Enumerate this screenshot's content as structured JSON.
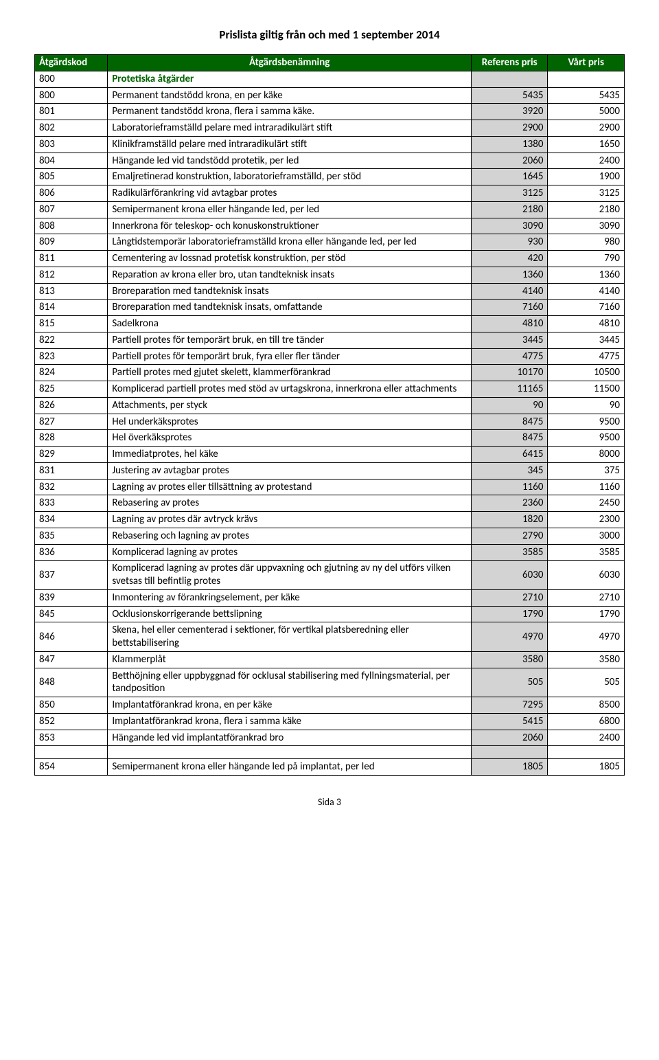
{
  "page": {
    "title": "Prislista giltig från och med 1 september 2014",
    "footer": "Sida 3"
  },
  "table": {
    "headers": {
      "code": "Åtgärdskod",
      "desc": "Åtgärdsbenämning",
      "ref": "Referens pris",
      "our": "Vårt pris"
    },
    "section": {
      "code": "800",
      "label": "Protetiska åtgärder"
    },
    "rows": [
      {
        "code": "800",
        "desc": "Permanent tandstödd krona, en per käke",
        "ref": "5435",
        "our": "5435"
      },
      {
        "code": "801",
        "desc": "Permanent tandstödd krona, flera i samma käke.",
        "ref": "3920",
        "our": "5000"
      },
      {
        "code": "802",
        "desc": "Laboratorieframställd pelare med intraradikulärt stift",
        "ref": "2900",
        "our": "2900"
      },
      {
        "code": "803",
        "desc": "Klinikframställd pelare med intraradikulärt stift",
        "ref": "1380",
        "our": "1650"
      },
      {
        "code": "804",
        "desc": "Hängande led vid tandstödd protetik, per led",
        "ref": "2060",
        "our": "2400"
      },
      {
        "code": "805",
        "desc": "Emaljretinerad konstruktion, laboratorieframställd, per stöd",
        "ref": "1645",
        "our": "1900"
      },
      {
        "code": "806",
        "desc": "Radikulärförankring vid avtagbar protes",
        "ref": "3125",
        "our": "3125"
      },
      {
        "code": "807",
        "desc": "Semipermanent krona eller hängande led, per led",
        "ref": "2180",
        "our": "2180"
      },
      {
        "code": "808",
        "desc": "Innerkrona för teleskop- och konuskonstruktioner",
        "ref": "3090",
        "our": "3090"
      },
      {
        "code": "809",
        "desc": "Långtidstemporär laboratorieframställd krona eller hängande led, per led",
        "ref": "930",
        "our": "980"
      },
      {
        "code": "811",
        "desc": "Cementering av lossnad protetisk konstruktion, per stöd",
        "ref": "420",
        "our": "790"
      },
      {
        "code": "812",
        "desc": "Reparation av krona eller bro, utan tandteknisk insats",
        "ref": "1360",
        "our": "1360"
      },
      {
        "code": "813",
        "desc": "Broreparation med tandteknisk insats",
        "ref": "4140",
        "our": "4140"
      },
      {
        "code": "814",
        "desc": "Broreparation med tandteknisk insats, omfattande",
        "ref": "7160",
        "our": "7160"
      },
      {
        "code": "815",
        "desc": "Sadelkrona",
        "ref": "4810",
        "our": "4810"
      },
      {
        "code": "822",
        "desc": "Partiell protes för temporärt bruk, en till tre tänder",
        "ref": "3445",
        "our": "3445"
      },
      {
        "code": "823",
        "desc": "Partiell protes för temporärt bruk, fyra eller fler tänder",
        "ref": "4775",
        "our": "4775"
      },
      {
        "code": "824",
        "desc": "Partiell protes med gjutet skelett, klammerförankrad",
        "ref": "10170",
        "our": "10500"
      },
      {
        "code": "825",
        "desc": "Komplicerad partiell protes med stöd av urtagskrona, innerkrona eller attachments",
        "ref": "11165",
        "our": "11500"
      },
      {
        "code": "826",
        "desc": "Attachments, per styck",
        "ref": "90",
        "our": "90"
      },
      {
        "code": "827",
        "desc": "Hel underkäksprotes",
        "ref": "8475",
        "our": "9500"
      },
      {
        "code": "828",
        "desc": "Hel överkäksprotes",
        "ref": "8475",
        "our": "9500"
      },
      {
        "code": "829",
        "desc": "Immediatprotes, hel käke",
        "ref": "6415",
        "our": "8000"
      },
      {
        "code": "831",
        "desc": "Justering av avtagbar protes",
        "ref": "345",
        "our": "375"
      },
      {
        "code": "832",
        "desc": "Lagning av protes eller tillsättning av protestand",
        "ref": "1160",
        "our": "1160"
      },
      {
        "code": "833",
        "desc": "Rebasering av protes",
        "ref": "2360",
        "our": "2450"
      },
      {
        "code": "834",
        "desc": "Lagning av protes där avtryck krävs",
        "ref": "1820",
        "our": "2300"
      },
      {
        "code": "835",
        "desc": "Rebasering och lagning av protes",
        "ref": "2790",
        "our": "3000"
      },
      {
        "code": "836",
        "desc": "Komplicerad lagning av protes",
        "ref": "3585",
        "our": "3585"
      },
      {
        "code": "837",
        "desc": "Komplicerad lagning av protes där uppvaxning och gjutning av ny del utförs vilken svetsas till befintlig protes",
        "ref": "6030",
        "our": "6030"
      },
      {
        "code": "839",
        "desc": "Inmontering av förankringselement, per käke",
        "ref": "2710",
        "our": "2710"
      },
      {
        "code": "845",
        "desc": "Ocklusionskorrigerande bettslipning",
        "ref": "1790",
        "our": "1790"
      },
      {
        "code": "846",
        "desc": "Skena, hel eller cementerad i sektioner, för vertikal platsberedning eller bettstabilisering",
        "ref": "4970",
        "our": "4970"
      },
      {
        "code": "847",
        "desc": "Klammerplåt",
        "ref": "3580",
        "our": "3580"
      },
      {
        "code": "848",
        "desc": "Betthöjning eller uppbyggnad för ocklusal stabilisering med fyllningsmaterial, per tandposition",
        "ref": "505",
        "our": "505"
      },
      {
        "code": "850",
        "desc": "Implantatförankrad krona, en per käke",
        "ref": "7295",
        "our": "8500"
      },
      {
        "code": "852",
        "desc": "Implantatförankrad krona, flera i samma käke",
        "ref": "5415",
        "our": "6800"
      },
      {
        "code": "853",
        "desc": "Hängande led vid implantatförankrad bro",
        "ref": "2060",
        "our": "2400"
      },
      {
        "blank": true
      },
      {
        "code": "854",
        "desc": "Semipermanent krona eller hängande led på implantat, per led",
        "ref": "1805",
        "our": "1805"
      }
    ]
  }
}
